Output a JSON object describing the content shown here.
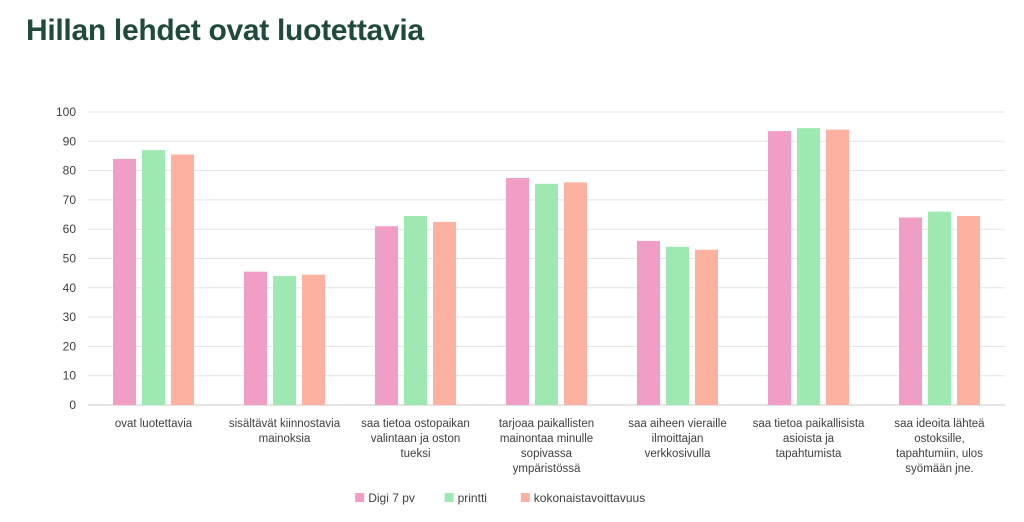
{
  "page": {
    "title": "Hillan lehdet ovat luotettavia"
  },
  "chart_data": {
    "type": "bar",
    "title": "",
    "xlabel": "",
    "ylabel": "",
    "ylim": [
      0,
      100
    ],
    "yticks": [
      0,
      10,
      20,
      30,
      40,
      50,
      60,
      70,
      80,
      90,
      100
    ],
    "grid": true,
    "legend_position": "bottom",
    "categories": [
      [
        "ovat luotettavia"
      ],
      [
        "sisältävät kiinnostavia",
        "mainoksia"
      ],
      [
        "saa tietoa ostopaikan",
        "valintaan ja oston",
        "tueksi"
      ],
      [
        "tarjoaa paikallisten",
        "mainontaa minulle",
        "sopivassa",
        "ympäristössä"
      ],
      [
        "saa aiheen vieraille",
        "ilmoittajan",
        "verkkosivulla"
      ],
      [
        "saa tietoa paikallisista",
        "asioista ja",
        "tapahtumista"
      ],
      [
        "saa ideoita lähteä",
        "ostoksille,",
        "tapahtumiin, ulos",
        "syömään jne."
      ]
    ],
    "series": [
      {
        "name": "Digi 7 pv",
        "color": "#f09ec6",
        "values": [
          84,
          45.5,
          61,
          77.5,
          56,
          93.5,
          64
        ]
      },
      {
        "name": "printti",
        "color": "#9ee9b1",
        "values": [
          87,
          44,
          64.5,
          75.5,
          54,
          94.5,
          66
        ]
      },
      {
        "name": "kokonaistavoittavuus",
        "color": "#fdb2a1",
        "values": [
          85.5,
          44.5,
          62.5,
          76,
          53,
          94,
          64.5
        ]
      }
    ]
  }
}
